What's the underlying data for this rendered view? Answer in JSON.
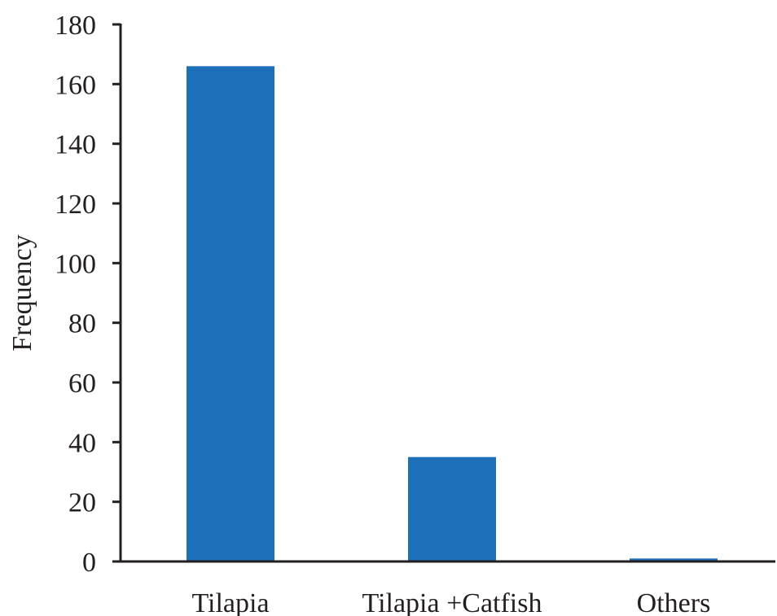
{
  "chart_data": {
    "type": "bar",
    "title": "",
    "xlabel": "",
    "ylabel": "Frequency",
    "categories": [
      "Tilapia",
      "Tilapia +Catfish",
      "Others"
    ],
    "values": [
      166,
      35,
      1
    ],
    "ylim": [
      0,
      180
    ],
    "yticks": [
      0,
      20,
      40,
      60,
      80,
      100,
      120,
      140,
      160,
      180
    ],
    "grid": false,
    "legend": "none",
    "bar_color": "#1c6fb8",
    "axis_color": "#231f20"
  }
}
